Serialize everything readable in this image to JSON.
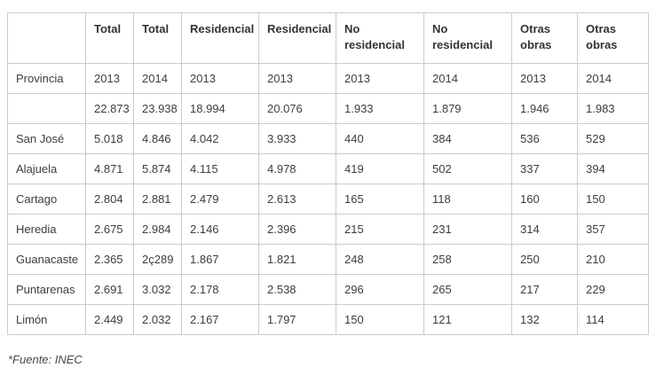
{
  "colors": {
    "border": "#cbcbcb",
    "header_text": "#333333",
    "body_text": "#3d3d3d",
    "background": "#ffffff"
  },
  "table": {
    "header_row1": [
      "",
      "Total",
      "Total",
      "Residencial",
      "Residencial",
      "No residencial",
      "No residencial",
      "Otras obras",
      "Otras obras"
    ],
    "header_row2": [
      "Provincia",
      "2013",
      "2014",
      "2013",
      "2013",
      "2013",
      "2014",
      "2013",
      "2014"
    ],
    "rows": [
      [
        "",
        "22.873",
        "23.938",
        "18.994",
        "20.076",
        "1.933",
        "1.879",
        "1.946",
        "1.983"
      ],
      [
        "San José",
        "5.018",
        "4.846",
        "4.042",
        "3.933",
        "440",
        "384",
        "536",
        "529"
      ],
      [
        "Alajuela",
        "4.871",
        "5.874",
        "4.115",
        "4.978",
        "419",
        "502",
        "337",
        "394"
      ],
      [
        "Cartago",
        "2.804",
        "2.881",
        "2.479",
        "2.613",
        "165",
        "118",
        "160",
        "150"
      ],
      [
        "Heredia",
        "2.675",
        "2.984",
        "2.146",
        "2.396",
        "215",
        "231",
        "314",
        "357"
      ],
      [
        "Guanacaste",
        "2.365",
        "2ç289",
        "1.867",
        "1.821",
        "248",
        "258",
        "250",
        "210"
      ],
      [
        "Puntarenas",
        "2.691",
        "3.032",
        "2.178",
        "2.538",
        "296",
        "265",
        "217",
        "229"
      ],
      [
        "Limón",
        "2.449",
        "2.032",
        "2.167",
        "1.797",
        "150",
        "121",
        "132",
        "114"
      ]
    ]
  },
  "footer": {
    "source_note": "*Fuente: INEC"
  },
  "chart_data": {
    "type": "table",
    "title": "",
    "column_groups": [
      "Total",
      "Residencial",
      "No residencial",
      "Otras obras"
    ],
    "header_row": [
      "",
      "Total",
      "Total",
      "Residencial",
      "Residencial",
      "No residencial",
      "No residencial",
      "Otras obras",
      "Otras obras"
    ],
    "year_row": [
      "Provincia",
      "2013",
      "2014",
      "2013",
      "2013",
      "2013",
      "2014",
      "2013",
      "2014"
    ],
    "rows": [
      {
        "provincia": "",
        "values": [
          "22.873",
          "23.938",
          "18.994",
          "20.076",
          "1.933",
          "1.879",
          "1.946",
          "1.983"
        ]
      },
      {
        "provincia": "San José",
        "values": [
          "5.018",
          "4.846",
          "4.042",
          "3.933",
          "440",
          "384",
          "536",
          "529"
        ]
      },
      {
        "provincia": "Alajuela",
        "values": [
          "4.871",
          "5.874",
          "4.115",
          "4.978",
          "419",
          "502",
          "337",
          "394"
        ]
      },
      {
        "provincia": "Cartago",
        "values": [
          "2.804",
          "2.881",
          "2.479",
          "2.613",
          "165",
          "118",
          "160",
          "150"
        ]
      },
      {
        "provincia": "Heredia",
        "values": [
          "2.675",
          "2.984",
          "2.146",
          "2.396",
          "215",
          "231",
          "314",
          "357"
        ]
      },
      {
        "provincia": "Guanacaste",
        "values": [
          "2.365",
          "2ç289",
          "1.867",
          "1.821",
          "248",
          "258",
          "250",
          "210"
        ]
      },
      {
        "provincia": "Puntarenas",
        "values": [
          "2.691",
          "3.032",
          "2.178",
          "2.538",
          "296",
          "265",
          "217",
          "229"
        ]
      },
      {
        "provincia": "Limón",
        "values": [
          "2.449",
          "2.032",
          "2.167",
          "1.797",
          "150",
          "121",
          "132",
          "114"
        ]
      }
    ],
    "source": "*Fuente: INEC"
  }
}
